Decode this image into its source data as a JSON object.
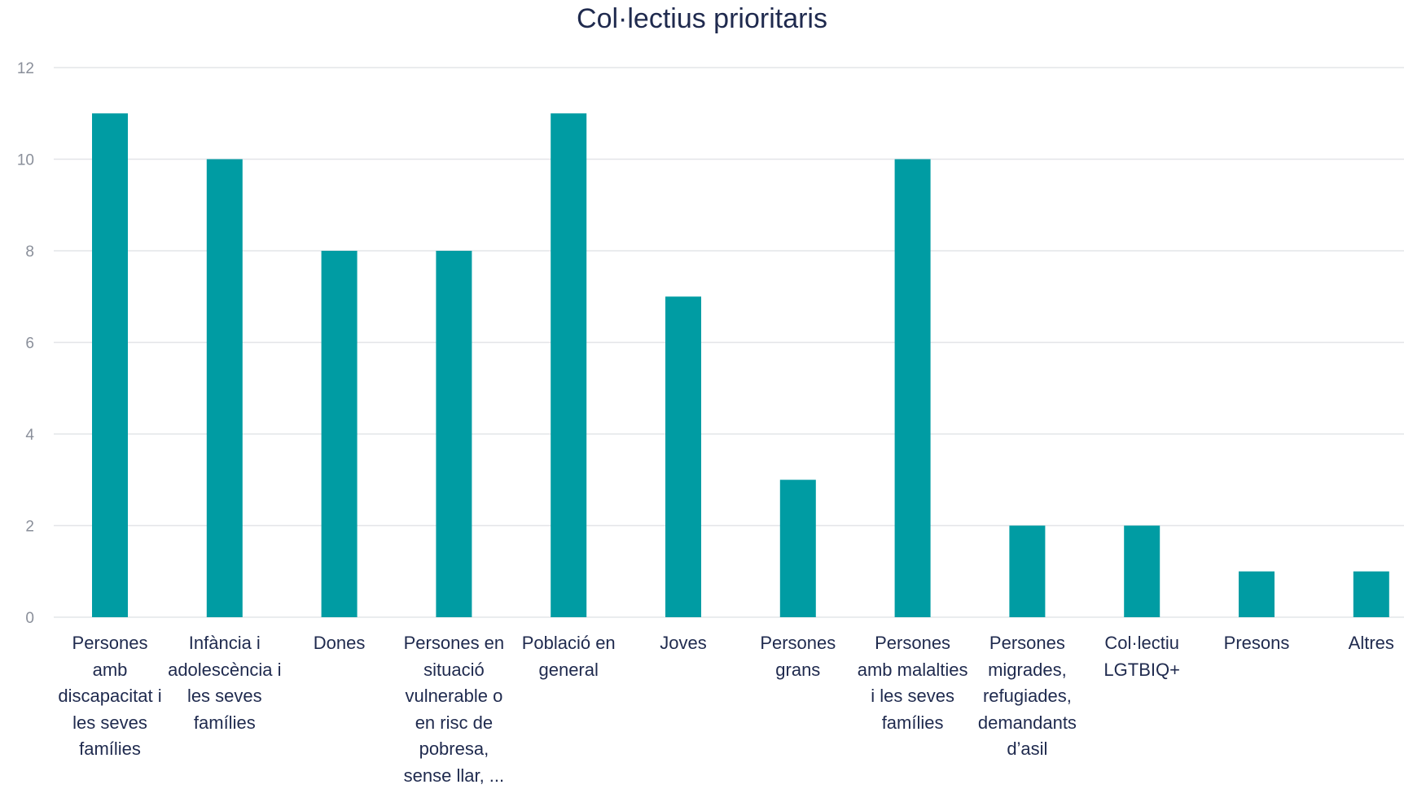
{
  "chart_data": {
    "type": "bar",
    "title": "Col·lectius prioritaris",
    "xlabel": "",
    "ylabel": "",
    "ylim": [
      0,
      12
    ],
    "yticks": [
      0,
      2,
      4,
      6,
      8,
      10,
      12
    ],
    "grid": true,
    "bar_color": "#009ca3",
    "categories": [
      "Persones amb discapacitat i les seves famílies",
      "Infància i adolescència i les seves famílies",
      "Dones",
      "Persones en situació vulnerable o en risc de pobresa, sense llar, ...",
      "Població en general",
      "Joves",
      "Persones grans",
      "Persones amb malalties i les seves famílies",
      "Persones migrades, refugiades, demandants d’asil",
      "Col·lectiu LGTBIQ+",
      "Presons",
      "Altres"
    ],
    "values": [
      11,
      10,
      8,
      8,
      11,
      7,
      3,
      10,
      2,
      2,
      1,
      1
    ]
  }
}
